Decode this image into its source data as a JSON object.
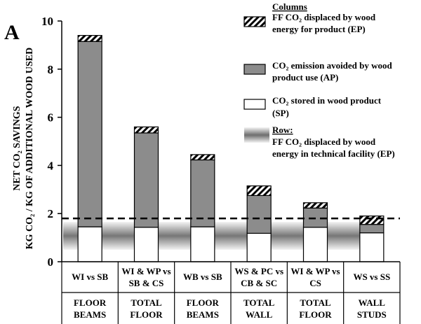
{
  "chart_data": {
    "type": "bar",
    "stacked": true,
    "panel_label": "A",
    "ylabel_lines": [
      "NET CO₂ SAVINGS",
      "KG CO₂ / KG OF ADDITIONAL WOOD USED"
    ],
    "ylim": [
      0,
      10
    ],
    "yticks": [
      "0",
      "2",
      "4",
      "6",
      "8",
      "10"
    ],
    "categories": [
      {
        "label_lines": [
          "WI vs SB"
        ],
        "group_lines": [
          "FLOOR",
          "BEAMS"
        ]
      },
      {
        "label_lines": [
          "WI & WP vs",
          "SB & CS"
        ],
        "group_lines": [
          "TOTAL",
          "FLOOR"
        ]
      },
      {
        "label_lines": [
          "WB vs SB"
        ],
        "group_lines": [
          "FLOOR",
          "BEAMS"
        ]
      },
      {
        "label_lines": [
          "WS & PC vs",
          "CB & SC"
        ],
        "group_lines": [
          "TOTAL",
          "WALL"
        ]
      },
      {
        "label_lines": [
          "WI & WP vs",
          "CS"
        ],
        "group_lines": [
          "TOTAL",
          "FLOOR"
        ]
      },
      {
        "label_lines": [
          "WS vs SS"
        ],
        "group_lines": [
          "WALL",
          "STUDS"
        ]
      }
    ],
    "series": [
      {
        "key": "SP",
        "values": [
          1.45,
          1.43,
          1.45,
          1.18,
          1.43,
          1.2
        ]
      },
      {
        "key": "AP",
        "values": [
          7.7,
          3.92,
          2.78,
          1.57,
          0.8,
          0.35
        ]
      },
      {
        "key": "EP",
        "values": [
          0.25,
          0.25,
          0.22,
          0.4,
          0.22,
          0.35
        ]
      }
    ],
    "reference_line": {
      "value": 1.8,
      "style": "dashed"
    },
    "legend": {
      "columns_title": "Columns",
      "row_title": "Row:",
      "items": [
        {
          "key": "EP",
          "lines": [
            "FF CO₂ displaced by wood",
            "energy for product (EP)"
          ]
        },
        {
          "key": "AP",
          "lines": [
            "CO₂ emission avoided by wood",
            "product use (AP)"
          ]
        },
        {
          "key": "SP",
          "lines": [
            "CO₂ stored in wood product",
            "(SP)"
          ]
        }
      ],
      "row_item_lines": [
        "FF CO₂ displaced by wood",
        "energy in technical facility (EP)"
      ]
    },
    "colors": {
      "SP": "#ffffff",
      "AP": "#8c8c8c",
      "EP_stroke": "#000000",
      "row_dark": "#7a7a7a",
      "row_light": "#f2f2f2"
    }
  }
}
